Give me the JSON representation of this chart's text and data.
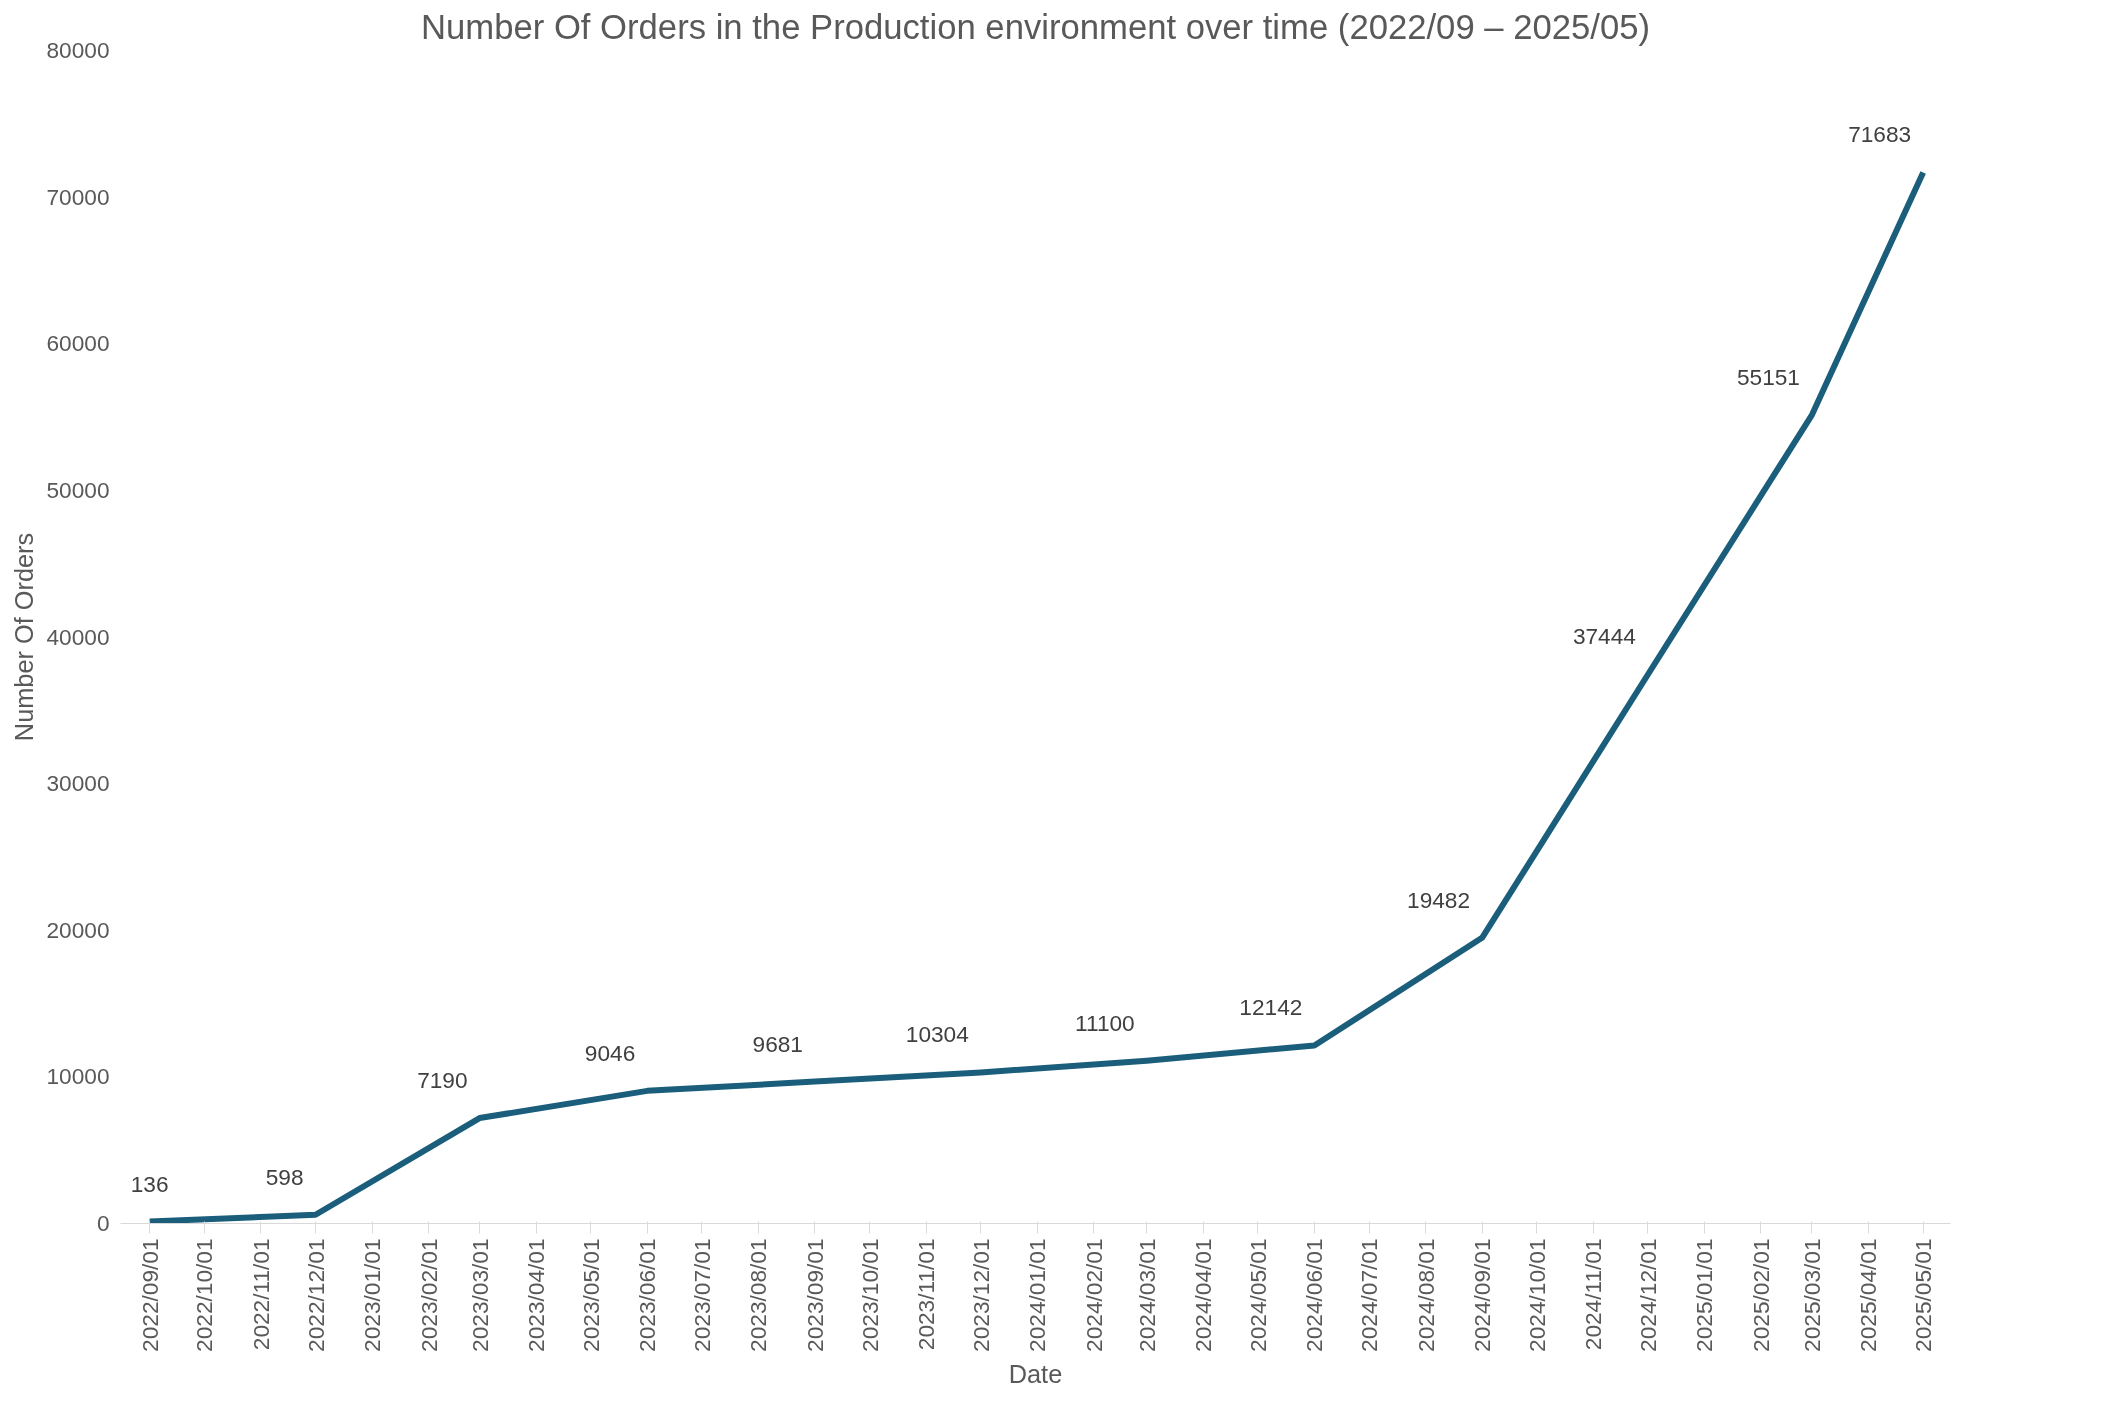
{
  "chart_data": {
    "type": "line",
    "title": "Number Of Orders in the Production environment over time (2022/09 – 2025/05)",
    "xlabel": "Date",
    "ylabel": "Number Of Orders",
    "x": [
      "2022-09-01",
      "2022-12-01",
      "2023-03-01",
      "2023-06-01",
      "2023-09-01",
      "2023-12-01",
      "2024-03-01",
      "2024-06-01",
      "2024-09-01",
      "2024-12-01",
      "2025-03-01",
      "2025-05-01"
    ],
    "series": [
      {
        "color": "#1b5e7c",
        "values": [
          136,
          598,
          7190,
          9046,
          9681,
          10304,
          11100,
          12142,
          19482,
          37444,
          55151,
          71683
        ]
      }
    ],
    "data_labels": true,
    "grid": false,
    "marker": "none",
    "line_style": "solid",
    "ylim": [
      0,
      80000
    ],
    "yticks": [
      0,
      10000,
      20000,
      30000,
      40000,
      50000,
      60000,
      70000,
      80000
    ],
    "xlim": [
      "2022-08-16",
      "2025-05-16"
    ],
    "xticks": [
      {
        "value": "2022-09-01",
        "label": "2022/09/01"
      },
      {
        "value": "2022-10-01",
        "label": "2022/10/01"
      },
      {
        "value": "2022-11-01",
        "label": "2022/11/01"
      },
      {
        "value": "2022-12-01",
        "label": "2022/12/01"
      },
      {
        "value": "2023-01-01",
        "label": "2023/01/01"
      },
      {
        "value": "2023-02-01",
        "label": "2023/02/01"
      },
      {
        "value": "2023-03-01",
        "label": "2023/03/01"
      },
      {
        "value": "2023-04-01",
        "label": "2023/04/01"
      },
      {
        "value": "2023-05-01",
        "label": "2023/05/01"
      },
      {
        "value": "2023-06-01",
        "label": "2023/06/01"
      },
      {
        "value": "2023-07-01",
        "label": "2023/07/01"
      },
      {
        "value": "2023-08-01",
        "label": "2023/08/01"
      },
      {
        "value": "2023-09-01",
        "label": "2023/09/01"
      },
      {
        "value": "2023-10-01",
        "label": "2023/10/01"
      },
      {
        "value": "2023-11-01",
        "label": "2023/11/01"
      },
      {
        "value": "2023-12-01",
        "label": "2023/12/01"
      },
      {
        "value": "2024-01-01",
        "label": "2024/01/01"
      },
      {
        "value": "2024-02-01",
        "label": "2024/02/01"
      },
      {
        "value": "2024-03-01",
        "label": "2024/03/01"
      },
      {
        "value": "2024-04-01",
        "label": "2024/04/01"
      },
      {
        "value": "2024-05-01",
        "label": "2024/05/01"
      },
      {
        "value": "2024-06-01",
        "label": "2024/06/01"
      },
      {
        "value": "2024-07-01",
        "label": "2024/07/01"
      },
      {
        "value": "2024-08-01",
        "label": "2024/08/01"
      },
      {
        "value": "2024-09-01",
        "label": "2024/09/01"
      },
      {
        "value": "2024-10-01",
        "label": "2024/10/01"
      },
      {
        "value": "2024-11-01",
        "label": "2024/11/01"
      },
      {
        "value": "2024-12-01",
        "label": "2024/12/01"
      },
      {
        "value": "2025-01-01",
        "label": "2025/01/01"
      },
      {
        "value": "2025-02-01",
        "label": "2025/02/01"
      },
      {
        "value": "2025-03-01",
        "label": "2025/03/01"
      },
      {
        "value": "2025-04-01",
        "label": "2025/04/01"
      },
      {
        "value": "2025-05-01",
        "label": "2025/05/01"
      }
    ]
  }
}
